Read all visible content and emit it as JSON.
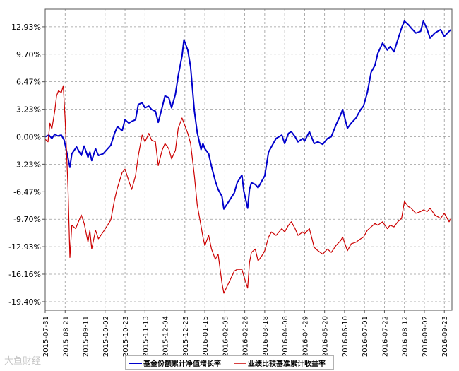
{
  "watermark": "大鱼财经",
  "chart_data": {
    "type": "line",
    "title": "",
    "xlabel": "",
    "ylabel": "",
    "x_dates": [
      "2015-07-31",
      "2015-08-21",
      "2015-09-11",
      "2015-10-02",
      "2015-10-23",
      "2015-11-13",
      "2015-12-04",
      "2015-12-25",
      "2016-01-15",
      "2016-02-05",
      "2016-02-26",
      "2016-03-18",
      "2016-04-08",
      "2016-04-29",
      "2016-05-20",
      "2016-06-10",
      "2016-07-01",
      "2016-07-22",
      "2016-08-12",
      "2016-09-02",
      "2016-09-23"
    ],
    "x_range": [
      "2015-07-31",
      "2016-10-01"
    ],
    "y_ticks": [
      "12.93%",
      "9.70%",
      "6.47%",
      "3.23%",
      "0.00%",
      "-3.23%",
      "-6.47%",
      "-9.70%",
      "-12.93%",
      "-16.16%",
      "-19.40%"
    ],
    "y_tick_values": [
      12.93,
      9.7,
      6.47,
      3.23,
      0.0,
      -3.23,
      -6.47,
      -9.7,
      -12.93,
      -16.16,
      -19.4
    ],
    "ylim": [
      -20.4,
      15.0
    ],
    "grid": true,
    "legend_position": "bottom",
    "series": [
      {
        "name": "基金份额累计净值增长率",
        "color": "#0000cc",
        "points": [
          [
            "2015-07-31",
            0.0
          ],
          [
            "2015-08-04",
            0.2
          ],
          [
            "2015-08-07",
            -0.2
          ],
          [
            "2015-08-10",
            0.3
          ],
          [
            "2015-08-13",
            0.1
          ],
          [
            "2015-08-17",
            0.2
          ],
          [
            "2015-08-20",
            -0.4
          ],
          [
            "2015-08-24",
            -2.5
          ],
          [
            "2015-08-26",
            -3.6
          ],
          [
            "2015-08-28",
            -2.0
          ],
          [
            "2015-09-02",
            -1.2
          ],
          [
            "2015-09-07",
            -2.2
          ],
          [
            "2015-09-10",
            -1.1
          ],
          [
            "2015-09-14",
            -2.4
          ],
          [
            "2015-09-16",
            -1.8
          ],
          [
            "2015-09-18",
            -2.8
          ],
          [
            "2015-09-22",
            -1.4
          ],
          [
            "2015-09-25",
            -2.2
          ],
          [
            "2015-09-30",
            -2.0
          ],
          [
            "2015-10-08",
            -1.0
          ],
          [
            "2015-10-12",
            0.4
          ],
          [
            "2015-10-15",
            1.2
          ],
          [
            "2015-10-20",
            0.7
          ],
          [
            "2015-10-23",
            2.0
          ],
          [
            "2015-10-27",
            1.6
          ],
          [
            "2015-10-30",
            1.8
          ],
          [
            "2015-11-03",
            2.0
          ],
          [
            "2015-11-06",
            3.8
          ],
          [
            "2015-11-10",
            4.0
          ],
          [
            "2015-11-13",
            3.4
          ],
          [
            "2015-11-17",
            3.6
          ],
          [
            "2015-11-20",
            3.2
          ],
          [
            "2015-11-24",
            3.0
          ],
          [
            "2015-11-27",
            1.7
          ],
          [
            "2015-12-01",
            3.4
          ],
          [
            "2015-12-04",
            4.8
          ],
          [
            "2015-12-08",
            4.6
          ],
          [
            "2015-12-11",
            3.4
          ],
          [
            "2015-12-15",
            5.0
          ],
          [
            "2015-12-18",
            7.2
          ],
          [
            "2015-12-22",
            9.5
          ],
          [
            "2015-12-24",
            11.4
          ],
          [
            "2015-12-28",
            10.2
          ],
          [
            "2015-12-31",
            8.2
          ],
          [
            "2016-01-04",
            3.0
          ],
          [
            "2016-01-07",
            0.5
          ],
          [
            "2016-01-11",
            -1.5
          ],
          [
            "2016-01-13",
            -0.8
          ],
          [
            "2016-01-15",
            -1.4
          ],
          [
            "2016-01-19",
            -2.0
          ],
          [
            "2016-01-22",
            -3.5
          ],
          [
            "2016-01-26",
            -5.2
          ],
          [
            "2016-01-29",
            -6.2
          ],
          [
            "2016-02-02",
            -7.0
          ],
          [
            "2016-02-04",
            -8.5
          ],
          [
            "2016-02-15",
            -6.6
          ],
          [
            "2016-02-18",
            -5.4
          ],
          [
            "2016-02-23",
            -4.5
          ],
          [
            "2016-02-25",
            -6.4
          ],
          [
            "2016-02-29",
            -8.4
          ],
          [
            "2016-03-02",
            -6.2
          ],
          [
            "2016-03-04",
            -5.4
          ],
          [
            "2016-03-08",
            -5.6
          ],
          [
            "2016-03-11",
            -6.0
          ],
          [
            "2016-03-15",
            -5.2
          ],
          [
            "2016-03-18",
            -4.6
          ],
          [
            "2016-03-22",
            -1.8
          ],
          [
            "2016-03-25",
            -1.2
          ],
          [
            "2016-03-30",
            -0.2
          ],
          [
            "2016-04-05",
            0.2
          ],
          [
            "2016-04-08",
            -0.8
          ],
          [
            "2016-04-12",
            0.4
          ],
          [
            "2016-04-15",
            0.6
          ],
          [
            "2016-04-19",
            0.0
          ],
          [
            "2016-04-22",
            -0.6
          ],
          [
            "2016-04-27",
            -0.2
          ],
          [
            "2016-04-29",
            -0.5
          ],
          [
            "2016-05-04",
            0.6
          ],
          [
            "2016-05-09",
            -0.8
          ],
          [
            "2016-05-13",
            -0.6
          ],
          [
            "2016-05-18",
            -0.9
          ],
          [
            "2016-05-23",
            -0.2
          ],
          [
            "2016-05-27",
            0.0
          ],
          [
            "2016-06-01",
            1.4
          ],
          [
            "2016-06-06",
            2.6
          ],
          [
            "2016-06-08",
            3.2
          ],
          [
            "2016-06-13",
            1.0
          ],
          [
            "2016-06-17",
            1.6
          ],
          [
            "2016-06-22",
            2.2
          ],
          [
            "2016-06-27",
            3.2
          ],
          [
            "2016-06-30",
            3.6
          ],
          [
            "2016-07-04",
            5.2
          ],
          [
            "2016-07-08",
            7.6
          ],
          [
            "2016-07-12",
            8.4
          ],
          [
            "2016-07-15",
            9.8
          ],
          [
            "2016-07-20",
            11.0
          ],
          [
            "2016-07-25",
            10.2
          ],
          [
            "2016-07-28",
            10.6
          ],
          [
            "2016-08-01",
            10.0
          ],
          [
            "2016-08-05",
            11.4
          ],
          [
            "2016-08-09",
            12.8
          ],
          [
            "2016-08-12",
            13.6
          ],
          [
            "2016-08-16",
            13.2
          ],
          [
            "2016-08-19",
            12.8
          ],
          [
            "2016-08-24",
            12.2
          ],
          [
            "2016-08-29",
            12.4
          ],
          [
            "2016-09-01",
            13.6
          ],
          [
            "2016-09-05",
            12.6
          ],
          [
            "2016-09-08",
            11.6
          ],
          [
            "2016-09-13",
            12.2
          ],
          [
            "2016-09-19",
            12.6
          ],
          [
            "2016-09-23",
            11.8
          ],
          [
            "2016-09-28",
            12.4
          ],
          [
            "2016-09-30",
            12.6
          ]
        ]
      },
      {
        "name": "业绩比较基准累计收益率",
        "color": "#cc0000",
        "points": [
          [
            "2015-07-31",
            -0.3
          ],
          [
            "2015-08-03",
            -0.6
          ],
          [
            "2015-08-05",
            1.6
          ],
          [
            "2015-08-07",
            0.9
          ],
          [
            "2015-08-10",
            3.0
          ],
          [
            "2015-08-12",
            4.8
          ],
          [
            "2015-08-14",
            5.4
          ],
          [
            "2015-08-17",
            5.2
          ],
          [
            "2015-08-19",
            6.0
          ],
          [
            "2015-08-21",
            2.0
          ],
          [
            "2015-08-24",
            -6.0
          ],
          [
            "2015-08-26",
            -14.2
          ],
          [
            "2015-08-28",
            -10.4
          ],
          [
            "2015-09-01",
            -10.8
          ],
          [
            "2015-09-07",
            -9.2
          ],
          [
            "2015-09-10",
            -10.2
          ],
          [
            "2015-09-14",
            -12.4
          ],
          [
            "2015-09-16",
            -11.0
          ],
          [
            "2015-09-18",
            -13.2
          ],
          [
            "2015-09-22",
            -11.0
          ],
          [
            "2015-09-25",
            -12.0
          ],
          [
            "2015-09-30",
            -11.2
          ],
          [
            "2015-10-08",
            -9.8
          ],
          [
            "2015-10-12",
            -7.4
          ],
          [
            "2015-10-15",
            -6.0
          ],
          [
            "2015-10-20",
            -4.2
          ],
          [
            "2015-10-23",
            -3.8
          ],
          [
            "2015-10-27",
            -5.2
          ],
          [
            "2015-10-30",
            -6.2
          ],
          [
            "2015-11-03",
            -4.6
          ],
          [
            "2015-11-06",
            -2.2
          ],
          [
            "2015-11-10",
            0.2
          ],
          [
            "2015-11-13",
            -0.6
          ],
          [
            "2015-11-17",
            0.4
          ],
          [
            "2015-11-20",
            -0.4
          ],
          [
            "2015-11-24",
            -0.6
          ],
          [
            "2015-11-27",
            -3.4
          ],
          [
            "2015-12-01",
            -1.6
          ],
          [
            "2015-12-04",
            -0.8
          ],
          [
            "2015-12-08",
            -1.4
          ],
          [
            "2015-12-11",
            -2.6
          ],
          [
            "2015-12-15",
            -1.6
          ],
          [
            "2015-12-18",
            1.0
          ],
          [
            "2015-12-22",
            2.2
          ],
          [
            "2015-12-24",
            1.6
          ],
          [
            "2015-12-28",
            0.4
          ],
          [
            "2015-12-31",
            -0.8
          ],
          [
            "2016-01-04",
            -4.6
          ],
          [
            "2016-01-07",
            -8.0
          ],
          [
            "2016-01-11",
            -10.5
          ],
          [
            "2016-01-13",
            -11.8
          ],
          [
            "2016-01-15",
            -12.8
          ],
          [
            "2016-01-19",
            -11.6
          ],
          [
            "2016-01-22",
            -13.2
          ],
          [
            "2016-01-26",
            -14.4
          ],
          [
            "2016-01-29",
            -13.8
          ],
          [
            "2016-02-02",
            -17.2
          ],
          [
            "2016-02-04",
            -18.4
          ],
          [
            "2016-02-15",
            -15.8
          ],
          [
            "2016-02-18",
            -15.6
          ],
          [
            "2016-02-23",
            -15.6
          ],
          [
            "2016-02-25",
            -16.4
          ],
          [
            "2016-02-29",
            -17.8
          ],
          [
            "2016-03-02",
            -14.8
          ],
          [
            "2016-03-04",
            -13.6
          ],
          [
            "2016-03-08",
            -13.2
          ],
          [
            "2016-03-11",
            -14.6
          ],
          [
            "2016-03-15",
            -14.0
          ],
          [
            "2016-03-18",
            -13.4
          ],
          [
            "2016-03-22",
            -11.8
          ],
          [
            "2016-03-25",
            -11.2
          ],
          [
            "2016-03-30",
            -11.6
          ],
          [
            "2016-04-05",
            -10.8
          ],
          [
            "2016-04-08",
            -11.2
          ],
          [
            "2016-04-12",
            -10.4
          ],
          [
            "2016-04-15",
            -10.0
          ],
          [
            "2016-04-19",
            -10.8
          ],
          [
            "2016-04-22",
            -11.6
          ],
          [
            "2016-04-27",
            -11.2
          ],
          [
            "2016-04-29",
            -11.4
          ],
          [
            "2016-05-04",
            -10.8
          ],
          [
            "2016-05-09",
            -13.0
          ],
          [
            "2016-05-13",
            -13.4
          ],
          [
            "2016-05-18",
            -13.8
          ],
          [
            "2016-05-23",
            -13.2
          ],
          [
            "2016-05-27",
            -13.6
          ],
          [
            "2016-06-01",
            -12.8
          ],
          [
            "2016-06-06",
            -12.2
          ],
          [
            "2016-06-08",
            -11.8
          ],
          [
            "2016-06-13",
            -13.4
          ],
          [
            "2016-06-17",
            -12.6
          ],
          [
            "2016-06-22",
            -12.4
          ],
          [
            "2016-06-27",
            -12.0
          ],
          [
            "2016-06-30",
            -11.8
          ],
          [
            "2016-07-04",
            -11.0
          ],
          [
            "2016-07-08",
            -10.6
          ],
          [
            "2016-07-12",
            -10.2
          ],
          [
            "2016-07-15",
            -10.4
          ],
          [
            "2016-07-20",
            -10.0
          ],
          [
            "2016-07-25",
            -10.8
          ],
          [
            "2016-07-28",
            -10.4
          ],
          [
            "2016-08-01",
            -10.6
          ],
          [
            "2016-08-05",
            -10.0
          ],
          [
            "2016-08-09",
            -9.6
          ],
          [
            "2016-08-12",
            -7.6
          ],
          [
            "2016-08-16",
            -8.2
          ],
          [
            "2016-08-19",
            -8.4
          ],
          [
            "2016-08-24",
            -9.0
          ],
          [
            "2016-08-29",
            -8.8
          ],
          [
            "2016-09-01",
            -8.6
          ],
          [
            "2016-09-05",
            -8.8
          ],
          [
            "2016-09-08",
            -8.4
          ],
          [
            "2016-09-13",
            -9.2
          ],
          [
            "2016-09-19",
            -9.6
          ],
          [
            "2016-09-23",
            -9.0
          ],
          [
            "2016-09-28",
            -10.0
          ],
          [
            "2016-09-30",
            -9.6
          ]
        ]
      }
    ]
  }
}
